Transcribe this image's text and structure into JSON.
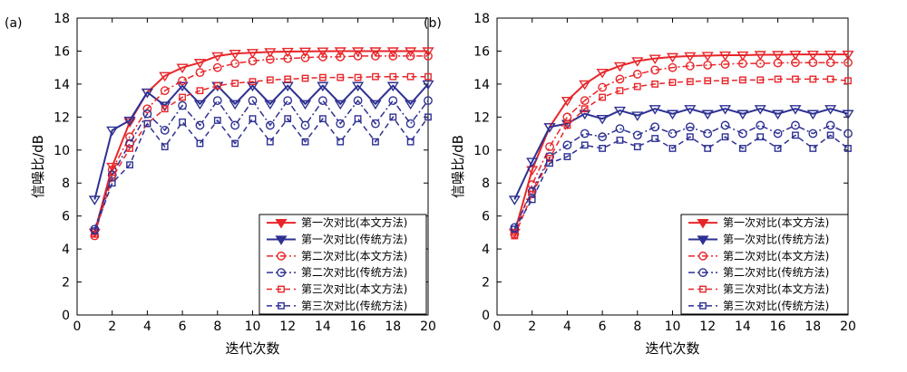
{
  "chart_data": [
    {
      "panel_label": "(a)",
      "type": "line",
      "xlabel": "迭代次数",
      "ylabel": "信噪比/dB",
      "xlim": [
        0,
        20
      ],
      "ylim": [
        0,
        18
      ],
      "xticks": [
        0,
        2,
        4,
        6,
        8,
        10,
        12,
        14,
        16,
        18,
        20
      ],
      "yticks": [
        0,
        2,
        4,
        6,
        8,
        10,
        12,
        14,
        16,
        18
      ],
      "grid": false,
      "legend_position": "bottom-right",
      "x": [
        1,
        2,
        3,
        4,
        5,
        6,
        7,
        8,
        9,
        10,
        11,
        12,
        13,
        14,
        15,
        16,
        17,
        18,
        19,
        20
      ],
      "series": [
        {
          "name": "第一次对比(本文方法)",
          "color": "#e8262a",
          "marker": "triangle-down",
          "line": "solid",
          "width": 2,
          "values": [
            5.0,
            9.0,
            11.7,
            13.5,
            14.5,
            15.0,
            15.3,
            15.7,
            15.85,
            15.9,
            15.95,
            15.97,
            15.98,
            15.99,
            16.0,
            16.0,
            16.0,
            16.0,
            16.0,
            16.0
          ]
        },
        {
          "name": "第一次对比(传统方法)",
          "color": "#2e3192",
          "marker": "triangle-down",
          "line": "solid",
          "width": 2,
          "values": [
            7.0,
            11.2,
            11.8,
            13.5,
            12.7,
            13.9,
            12.8,
            13.9,
            12.8,
            13.9,
            12.8,
            13.9,
            12.8,
            13.9,
            12.8,
            13.9,
            12.8,
            13.9,
            12.8,
            14.0
          ]
        },
        {
          "name": "第二次对比(本文方法)",
          "color": "#e8262a",
          "marker": "circle",
          "line": "dashdot",
          "width": 1.5,
          "values": [
            4.8,
            8.8,
            10.8,
            12.5,
            13.6,
            14.2,
            14.7,
            15.0,
            15.25,
            15.4,
            15.5,
            15.55,
            15.6,
            15.65,
            15.65,
            15.7,
            15.7,
            15.7,
            15.7,
            15.7
          ]
        },
        {
          "name": "第二次对比(传统方法)",
          "color": "#2e3192",
          "marker": "circle",
          "line": "dashdot",
          "width": 1.5,
          "values": [
            5.2,
            8.5,
            10.4,
            12.2,
            11.2,
            12.7,
            11.5,
            13.0,
            11.5,
            13.0,
            11.5,
            13.0,
            11.5,
            13.0,
            11.6,
            13.0,
            11.6,
            13.0,
            11.6,
            13.0
          ]
        },
        {
          "name": "第三次对比(本文方法)",
          "color": "#e8262a",
          "marker": "square",
          "line": "dashed",
          "width": 1.5,
          "values": [
            4.9,
            8.3,
            10.1,
            11.6,
            12.5,
            13.2,
            13.6,
            13.9,
            14.05,
            14.15,
            14.25,
            14.3,
            14.35,
            14.4,
            14.4,
            14.4,
            14.45,
            14.45,
            14.45,
            14.45
          ]
        },
        {
          "name": "第三次对比(传统方法)",
          "color": "#2e3192",
          "marker": "square",
          "line": "dashed",
          "width": 1.5,
          "values": [
            5.1,
            8.0,
            9.1,
            11.6,
            10.2,
            11.7,
            10.4,
            11.8,
            10.4,
            11.9,
            10.5,
            11.9,
            10.5,
            11.9,
            10.5,
            11.9,
            10.5,
            12.0,
            10.5,
            12.0
          ]
        }
      ]
    },
    {
      "panel_label": "(b)",
      "type": "line",
      "xlabel": "迭代次数",
      "ylabel": "信噪比/dB",
      "xlim": [
        0,
        20
      ],
      "ylim": [
        0,
        18
      ],
      "xticks": [
        0,
        2,
        4,
        6,
        8,
        10,
        12,
        14,
        16,
        18,
        20
      ],
      "yticks": [
        0,
        2,
        4,
        6,
        8,
        10,
        12,
        14,
        16,
        18
      ],
      "grid": false,
      "legend_position": "bottom-right",
      "x": [
        1,
        2,
        3,
        4,
        5,
        6,
        7,
        8,
        9,
        10,
        11,
        12,
        13,
        14,
        15,
        16,
        17,
        18,
        19,
        20
      ],
      "series": [
        {
          "name": "第一次对比(本文方法)",
          "color": "#e8262a",
          "marker": "triangle-down",
          "line": "solid",
          "width": 2,
          "values": [
            5.0,
            8.8,
            11.4,
            13.0,
            14.0,
            14.7,
            15.1,
            15.4,
            15.55,
            15.65,
            15.7,
            15.72,
            15.75,
            15.75,
            15.78,
            15.78,
            15.8,
            15.8,
            15.8,
            15.8
          ]
        },
        {
          "name": "第一次对比(传统方法)",
          "color": "#2e3192",
          "marker": "triangle-down",
          "line": "solid",
          "width": 2,
          "values": [
            7.0,
            9.3,
            11.4,
            11.6,
            12.2,
            11.9,
            12.4,
            12.1,
            12.5,
            12.2,
            12.5,
            12.2,
            12.5,
            12.2,
            12.5,
            12.2,
            12.5,
            12.2,
            12.5,
            12.2
          ]
        },
        {
          "name": "第二次对比(本文方法)",
          "color": "#e8262a",
          "marker": "circle",
          "line": "dashdot",
          "width": 1.5,
          "values": [
            4.9,
            7.9,
            10.2,
            12.0,
            13.0,
            13.8,
            14.3,
            14.6,
            14.85,
            15.0,
            15.1,
            15.15,
            15.2,
            15.25,
            15.25,
            15.28,
            15.3,
            15.3,
            15.3,
            15.3
          ]
        },
        {
          "name": "第二次对比(传统方法)",
          "color": "#2e3192",
          "marker": "circle",
          "line": "dashdot",
          "width": 1.5,
          "values": [
            5.3,
            7.5,
            9.6,
            10.3,
            11.0,
            10.8,
            11.3,
            10.9,
            11.4,
            11.0,
            11.4,
            11.0,
            11.5,
            11.0,
            11.5,
            11.0,
            11.5,
            11.0,
            11.5,
            11.0
          ]
        },
        {
          "name": "第三次对比(本文方法)",
          "color": "#e8262a",
          "marker": "square",
          "line": "dashed",
          "width": 1.5,
          "values": [
            4.8,
            7.3,
            9.5,
            11.5,
            12.5,
            13.2,
            13.6,
            13.85,
            14.0,
            14.1,
            14.15,
            14.2,
            14.2,
            14.25,
            14.25,
            14.3,
            14.3,
            14.3,
            14.3,
            14.2
          ]
        },
        {
          "name": "第三次对比(传统方法)",
          "color": "#2e3192",
          "marker": "square",
          "line": "dashed",
          "width": 1.5,
          "values": [
            5.2,
            7.0,
            9.2,
            9.6,
            10.3,
            10.1,
            10.6,
            10.2,
            10.7,
            10.1,
            10.8,
            10.1,
            10.8,
            10.1,
            10.8,
            10.1,
            10.9,
            10.1,
            10.9,
            10.1
          ]
        }
      ]
    }
  ]
}
